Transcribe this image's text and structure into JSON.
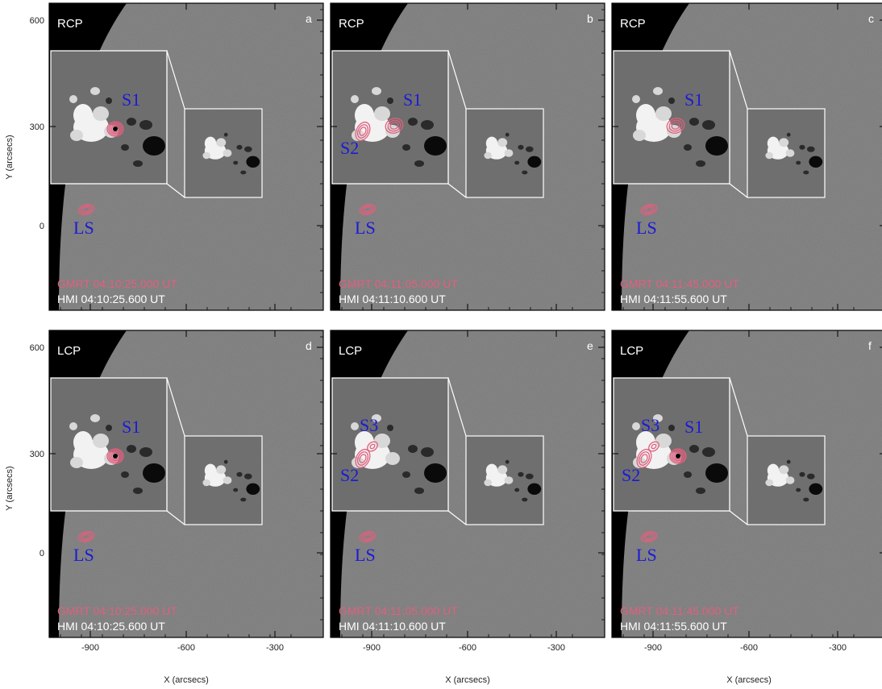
{
  "figure": {
    "x_axis_label": "X (arcsecs)",
    "y_axis_label": "Y (arcsecs)",
    "x_ticks": [
      -900,
      -600,
      -300
    ],
    "y_ticks": [
      600,
      300,
      0
    ],
    "source_color": "#1a1ad8",
    "contour_color": "#e0607e"
  },
  "panels": [
    {
      "letter": "a",
      "pol": "RCP",
      "gmrt": "GMRT 04:10:25.000 UT",
      "hmi": "HMI 04:10:25.600 UT",
      "sources": [
        {
          "label": "S1",
          "kind": "tight"
        }
      ],
      "ls": {
        "label": "LS"
      }
    },
    {
      "letter": "b",
      "pol": "RCP",
      "gmrt": "GMRT 04:11:05.000 UT",
      "hmi": "HMI 04:11:10.600 UT",
      "sources": [
        {
          "label": "S1",
          "kind": "loose"
        },
        {
          "label": "S2",
          "kind": "elong"
        }
      ],
      "ls": {
        "label": "LS"
      }
    },
    {
      "letter": "c",
      "pol": "RCP",
      "gmrt": "GMRT 04:11:45.000 UT",
      "hmi": "HMI 04:11:55.600 UT",
      "sources": [
        {
          "label": "S1",
          "kind": "loose"
        }
      ],
      "ls": {
        "label": "LS"
      }
    },
    {
      "letter": "d",
      "pol": "LCP",
      "gmrt": "GMRT 04:10:25.000 UT",
      "hmi": "HMI 04:10:25.600 UT",
      "sources": [
        {
          "label": "S1",
          "kind": "tight"
        }
      ],
      "ls": {
        "label": "LS"
      }
    },
    {
      "letter": "e",
      "pol": "LCP",
      "gmrt": "GMRT 04:11:05.000 UT",
      "hmi": "HMI 04:11:10.600 UT",
      "sources": [
        {
          "label": "S3",
          "kind": "small"
        },
        {
          "label": "S2",
          "kind": "elong"
        }
      ],
      "ls": {
        "label": "LS"
      }
    },
    {
      "letter": "f",
      "pol": "LCP",
      "gmrt": "GMRT 04:11:45.000 UT",
      "hmi": "HMI 04:11:55.600 UT",
      "sources": [
        {
          "label": "S1",
          "kind": "tight"
        },
        {
          "label": "S3",
          "kind": "small"
        },
        {
          "label": "S2",
          "kind": "elong"
        }
      ],
      "ls": {
        "label": "LS"
      }
    }
  ]
}
